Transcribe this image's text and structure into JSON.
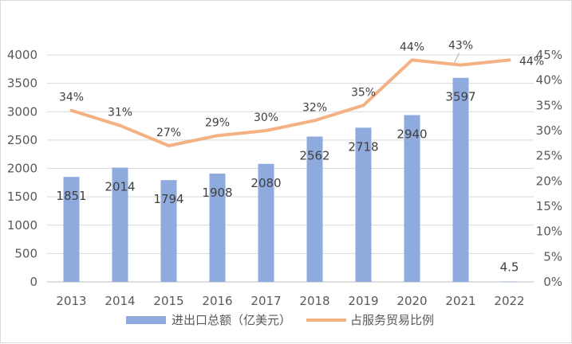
{
  "chart_data": {
    "type": "bar+line",
    "categories": [
      "2013",
      "2014",
      "2015",
      "2016",
      "2017",
      "2018",
      "2019",
      "2020",
      "2021",
      "2022"
    ],
    "series": [
      {
        "name": "进出口总额（亿美元）",
        "type": "bar",
        "axis": "left",
        "color": "#8faadc",
        "values": [
          1851,
          2014,
          1794,
          1908,
          2080,
          2562,
          2718,
          2940,
          3597,
          4.5
        ],
        "labels": [
          "1851",
          "2014",
          "1794",
          "1908",
          "2080",
          "2562",
          "2718",
          "2940",
          "3597",
          "4.5"
        ]
      },
      {
        "name": "占服务贸易比例",
        "type": "line",
        "axis": "right",
        "color": "#f4b183",
        "values": [
          34,
          31,
          27,
          29,
          30,
          32,
          35,
          44,
          43,
          44
        ],
        "labels": [
          "34%",
          "31%",
          "27%",
          "29%",
          "30%",
          "32%",
          "35%",
          "44%",
          "43%",
          "44%"
        ]
      }
    ],
    "y_left": {
      "min": 0,
      "max": 4000,
      "step": 500,
      "ticks": [
        "0",
        "500",
        "1000",
        "1500",
        "2000",
        "2500",
        "3000",
        "3500",
        "4000"
      ]
    },
    "y_right": {
      "min": 0,
      "max": 45,
      "step": 5,
      "ticks": [
        "0%",
        "5%",
        "10%",
        "15%",
        "20%",
        "25%",
        "30%",
        "35%",
        "40%",
        "45%"
      ]
    },
    "grid": true,
    "legend_position": "bottom"
  }
}
